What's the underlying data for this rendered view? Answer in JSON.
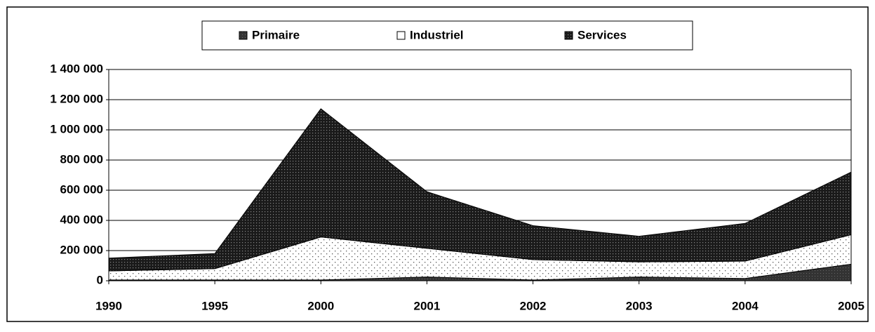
{
  "chart_data": {
    "type": "stacked_area",
    "categories": [
      "1990",
      "1995",
      "2000",
      "2001",
      "2002",
      "2003",
      "2004",
      "2005"
    ],
    "series": [
      {
        "name": "Primaire",
        "color": "#333333",
        "values": [
          5000,
          5000,
          5000,
          25000,
          5000,
          25000,
          15000,
          110000
        ]
      },
      {
        "name": "Industriel",
        "color": "#ffffff",
        "values": [
          60000,
          75000,
          285000,
          190000,
          135000,
          100000,
          115000,
          195000
        ]
      },
      {
        "name": "Services",
        "color": "#1a1a1a",
        "values": [
          85000,
          100000,
          850000,
          375000,
          225000,
          170000,
          250000,
          415000
        ]
      }
    ],
    "ylim": [
      0,
      1400000
    ],
    "yticks": [
      0,
      {
        "value": 200000,
        "label": "200 000"
      },
      {
        "value": 400000,
        "label": "400 000"
      },
      {
        "value": 600000,
        "label": "600 000"
      },
      {
        "value": 800000,
        "label": "800 000"
      },
      {
        "value": 1000000,
        "label": "1 000 000"
      },
      {
        "value": 1200000,
        "label": "1 200 000"
      },
      {
        "value": 1400000,
        "label": "1 400 000"
      }
    ],
    "grid": true,
    "legend": "top"
  }
}
